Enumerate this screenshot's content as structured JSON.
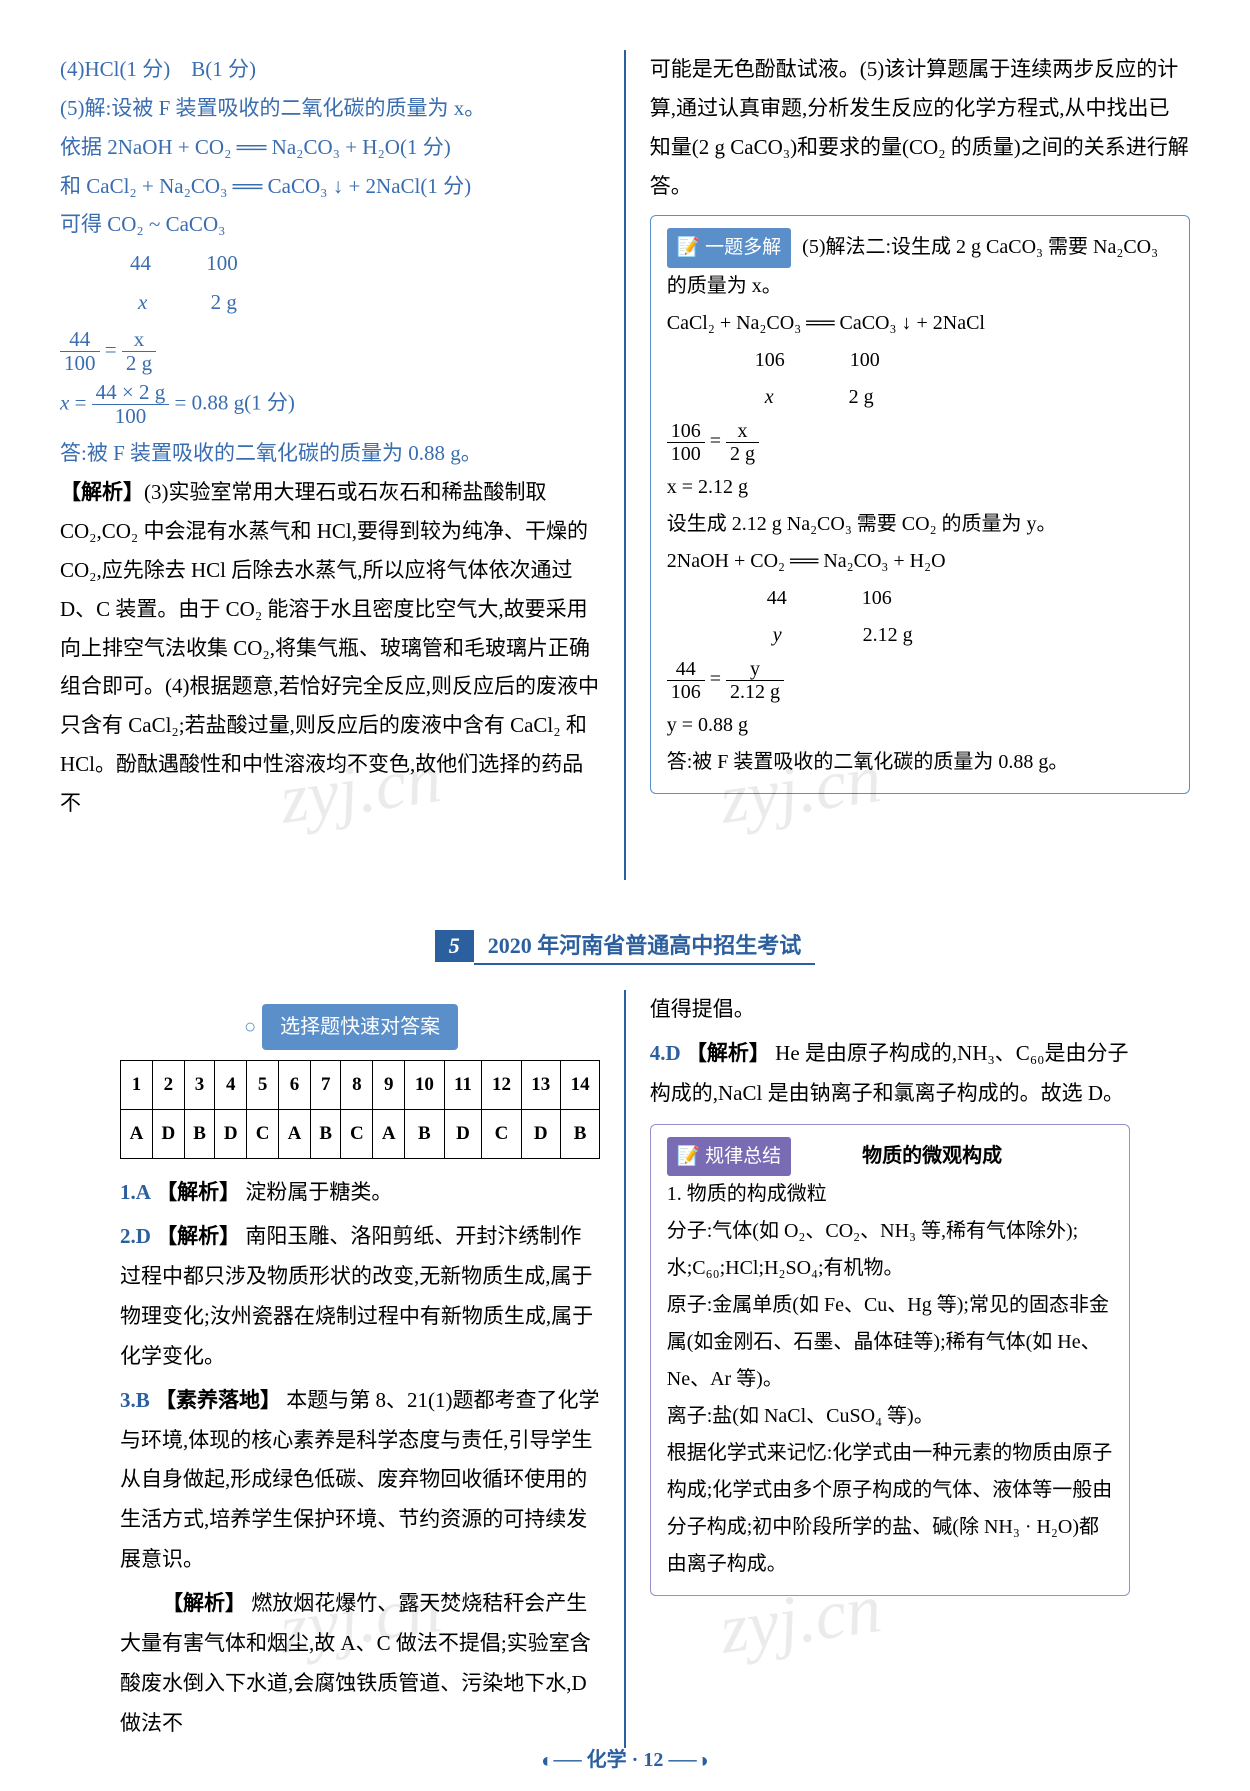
{
  "upper": {
    "left": {
      "line1": "(4)HCl(1 分)　B(1 分)",
      "line2": "(5)解:设被 F 装置吸收的二氧化碳的质量为 x。",
      "line3": "依据 2NaOH + CO₂ ══ Na₂CO₃ + H₂O(1 分)",
      "line4": "和 CaCl₂ + Na₂CO₃ ══ CaCO₃ ↓ + 2NaCl(1 分)",
      "line5": "可得 CO₂ ~ CaCO₃",
      "ratio1_a": "44",
      "ratio1_b": "100",
      "ratio2_a": "x",
      "ratio2_b": "2 g",
      "frac1_num": "44",
      "frac1_den": "100",
      "frac2_num": "x",
      "frac2_den": "2 g",
      "calc_num": "44 × 2 g",
      "calc_den": "100",
      "calc_result": "= 0.88 g(1 分)",
      "answer_line": "答:被 F 装置吸收的二氧化碳的质量为 0.88 g。",
      "jiexi_label": "【解析】",
      "jiexi_text": "(3)实验室常用大理石或石灰石和稀盐酸制取 CO₂,CO₂ 中会混有水蒸气和 HCl,要得到较为纯净、干燥的 CO₂,应先除去 HCl 后除去水蒸气,所以应将气体依次通过 D、C 装置。由于 CO₂ 能溶于水且密度比空气大,故要采用向上排空气法收集 CO₂,将集气瓶、玻璃管和毛玻璃片正确组合即可。(4)根据题意,若恰好完全反应,则反应后的废液中只含有 CaCl₂;若盐酸过量,则反应后的废液中含有 CaCl₂ 和 HCl。酚酞遇酸性和中性溶液均不变色,故他们选择的药品不"
    },
    "right": {
      "intro": "可能是无色酚酞试液。(5)该计算题属于连续两步反应的计算,通过认真审题,分析发生反应的化学方程式,从中找出已知量(2 g CaCO₃)和要求的量(CO₂ 的质量)之间的关系进行解答。",
      "box_tag": "📝 一题多解",
      "box_line1": "(5)解法二:设生成 2 g CaCO₃ 需要 Na₂CO₃ 的质量为 x。",
      "box_eq1": "CaCl₂ + Na₂CO₃ ══ CaCO₃ ↓ + 2NaCl",
      "box_r1a": "106",
      "box_r1b": "100",
      "box_r2a": "x",
      "box_r2b": "2 g",
      "box_f1n": "106",
      "box_f1d": "100",
      "box_f2n": "x",
      "box_f2d": "2 g",
      "box_res1": "x = 2.12 g",
      "box_line2": "设生成 2.12 g Na₂CO₃ 需要 CO₂ 的质量为 y。",
      "box_eq2": "2NaOH + CO₂ ══ Na₂CO₃ + H₂O",
      "box_r3a": "44",
      "box_r3b": "106",
      "box_r4a": "y",
      "box_r4b": "2.12 g",
      "box_f3n": "44",
      "box_f3d": "106",
      "box_f4n": "y",
      "box_f4d": "2.12 g",
      "box_res2": "y = 0.88 g",
      "box_ans": "答:被 F 装置吸收的二氧化碳的质量为 0.88 g。"
    }
  },
  "section": {
    "num": "5",
    "title": "2020 年河南省普通高中招生考试"
  },
  "lower": {
    "answer_banner": "选择题快速对答案",
    "table": {
      "nums": [
        "1",
        "2",
        "3",
        "4",
        "5",
        "6",
        "7",
        "8",
        "9",
        "10",
        "11",
        "12",
        "13",
        "14"
      ],
      "ans": [
        "A",
        "D",
        "B",
        "D",
        "C",
        "A",
        "B",
        "C",
        "A",
        "B",
        "D",
        "C",
        "D",
        "B"
      ]
    },
    "q1": {
      "num": "1.",
      "ans": "A",
      "tag": "【解析】",
      "text": "淀粉属于糖类。"
    },
    "q2": {
      "num": "2.",
      "ans": "D",
      "tag": "【解析】",
      "text": "南阳玉雕、洛阳剪纸、开封汴绣制作过程中都只涉及物质形状的改变,无新物质生成,属于物理变化;汝州瓷器在烧制过程中有新物质生成,属于化学变化。"
    },
    "q3": {
      "num": "3.",
      "ans": "B",
      "tag": "【素养落地】",
      "text": "本题与第 8、21(1)题都考查了化学与环境,体现的核心素养是科学态度与责任,引导学生从自身做起,形成绿色低碳、废弃物回收循环使用的生活方式,培养学生保护环境、节约资源的可持续发展意识。"
    },
    "q3b": {
      "tag": "【解析】",
      "text": "燃放烟花爆竹、露天焚烧秸秆会产生大量有害气体和烟尘,故 A、C 做法不提倡;实验室含酸废水倒入下水道,会腐蚀铁质管道、污染地下水,D 做法不"
    },
    "rtop": "值得提倡。",
    "q4": {
      "num": "4.",
      "ans": "D",
      "tag": "【解析】",
      "text": "He 是由原子构成的,NH₃、C₆₀是由分子构成的,NaCl 是由钠离子和氯离子构成的。故选 D。"
    },
    "box2_tag": "📝 规律总结",
    "box2_title": "物质的微观构成",
    "box2_l1": "1. 物质的构成微粒",
    "box2_l2": "分子:气体(如 O₂、CO₂、NH₃ 等,稀有气体除外);水;C₆₀;HCl;H₂SO₄;有机物。",
    "box2_l3": "原子:金属单质(如 Fe、Cu、Hg 等);常见的固态非金属(如金刚石、石墨、晶体硅等);稀有气体(如 He、Ne、Ar 等)。",
    "box2_l4": "离子:盐(如 NaCl、CuSO₄ 等)。",
    "box2_l5": "根据化学式来记忆:化学式由一种元素的物质由原子构成;化学式由多个原子构成的气体、液体等一般由分子构成;初中阶段所学的盐、碱(除 NH₃ · H₂O)都由离子构成。"
  },
  "footer": {
    "text": "化学 · 12"
  },
  "colors": {
    "primary_blue": "#3a6db0",
    "dark_blue": "#2c5f9e",
    "tag_blue": "#5b8fc9",
    "purple": "#9b8dc9"
  }
}
